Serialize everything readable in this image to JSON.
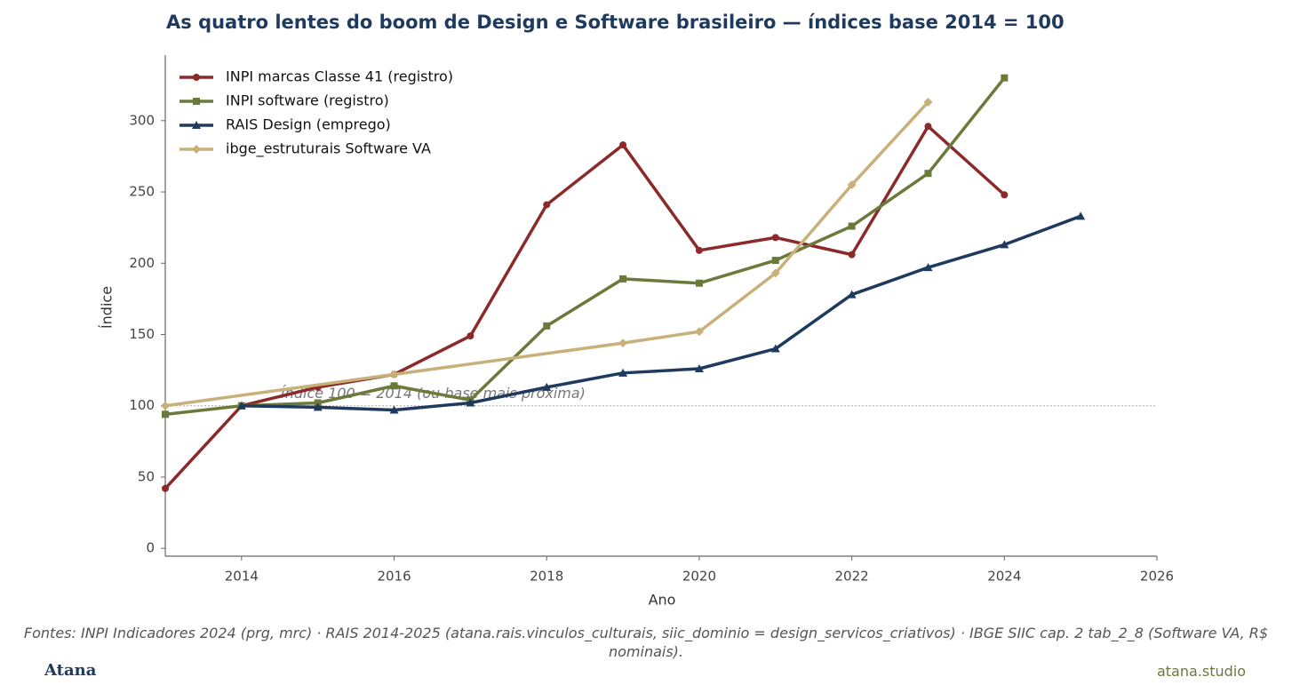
{
  "chart_data": {
    "type": "line",
    "title": "As quatro lentes do boom de Design e Software brasileiro — índices base 2014 = 100",
    "x_label": "Ano",
    "y_label": "Índice",
    "xlim": [
      2013,
      2026
    ],
    "ylim": [
      -5.5,
      346
    ],
    "xticks": [
      2014,
      2016,
      2018,
      2020,
      2022,
      2024,
      2026
    ],
    "yticks": [
      0,
      50,
      100,
      150,
      200,
      250,
      300
    ],
    "legend": "upper left",
    "reference_line": {
      "y": 100,
      "label": "Índice 100 = 2014 (ou base mais próxima)"
    },
    "series": [
      {
        "name": "INPI marcas Classe 41 (registro)",
        "color": "#8b2a2a",
        "marker": "circle",
        "x": [
          2013,
          2014,
          2015,
          2016,
          2017,
          2018,
          2019,
          2020,
          2021,
          2022,
          2023,
          2024
        ],
        "values": [
          42,
          100,
          113,
          122,
          149,
          241,
          283,
          209,
          218,
          206,
          296,
          248
        ]
      },
      {
        "name": "INPI software (registro)",
        "color": "#6b7a3a",
        "marker": "square",
        "x": [
          2013,
          2014,
          2015,
          2016,
          2017,
          2018,
          2019,
          2020,
          2021,
          2022,
          2023,
          2024
        ],
        "values": [
          94,
          100,
          102,
          114,
          104,
          156,
          189,
          186,
          202,
          226,
          263,
          330
        ]
      },
      {
        "name": "RAIS Design (emprego)",
        "color": "#1f3a5f",
        "marker": "triangle",
        "x": [
          2014,
          2015,
          2016,
          2017,
          2018,
          2019,
          2020,
          2021,
          2022,
          2023,
          2024,
          2025
        ],
        "values": [
          100,
          99,
          97,
          102,
          113,
          123,
          126,
          140,
          178,
          197,
          213,
          233
        ]
      },
      {
        "name": "ibge_estruturais Software VA",
        "color": "#c8b07a",
        "marker": "diamond",
        "x": [
          2013,
          2016,
          2019,
          2020,
          2021,
          2022,
          2023
        ],
        "values": [
          100,
          122,
          144,
          152,
          193,
          255,
          313
        ]
      }
    ]
  },
  "footer": {
    "source": "Fontes: INPI Indicadores 2024 (prg, mrc) · RAIS 2014-2025 (atana.rais.vinculos_culturais, siic_dominio = design_servicos_criativos) · IBGE SIIC cap. 2 tab_2_8 (Software VA, R$ nominais).",
    "brand": "Atana",
    "site": "atana.studio"
  }
}
